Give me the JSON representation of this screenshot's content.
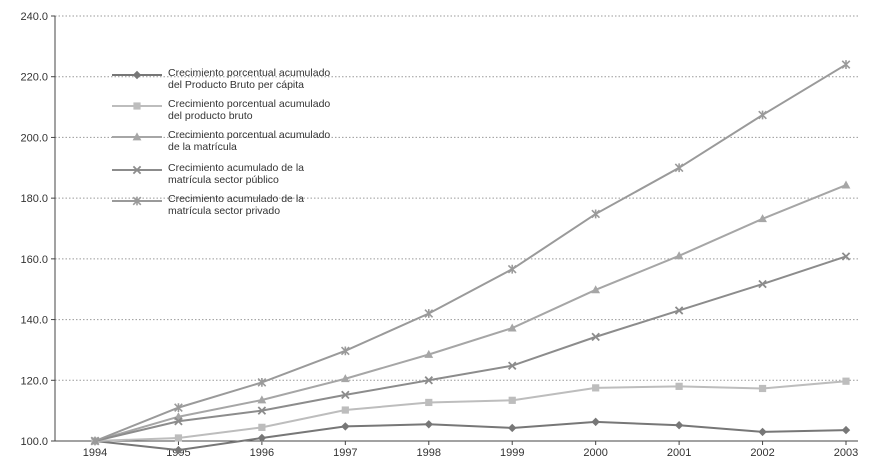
{
  "chart_data": {
    "type": "line",
    "title": "",
    "xlabel": "",
    "ylabel": "",
    "x": [
      "1994",
      "1995",
      "1996",
      "1997",
      "1998",
      "1999",
      "2000",
      "2001",
      "2002",
      "2003"
    ],
    "yticks": [
      "100.0",
      "120.0",
      "140.0",
      "160.0",
      "180.0",
      "200.0",
      "220.0",
      "240.0"
    ],
    "ylim": [
      100,
      240
    ],
    "grid": "horizontal-dotted",
    "legend_position": "top-left",
    "series": [
      {
        "name_lines": [
          "Crecimiento porcentual acumulado",
          "del Producto Bruto per cápita"
        ],
        "marker": "diamond",
        "color": "#777777",
        "values": [
          100.0,
          97.0,
          101.0,
          104.8,
          105.5,
          104.3,
          106.3,
          105.2,
          103.0,
          103.6
        ]
      },
      {
        "name_lines": [
          "Crecimiento porcentual acumulado",
          "del producto bruto"
        ],
        "marker": "square",
        "color": "#bdbdbd",
        "values": [
          100.0,
          101.0,
          104.5,
          110.2,
          112.7,
          113.4,
          117.5,
          118.0,
          117.3,
          119.7
        ]
      },
      {
        "name_lines": [
          "Crecimiento porcentual acumulado",
          "de la matrícula"
        ],
        "marker": "triangle",
        "color": "#a6a6a6",
        "values": [
          100.0,
          108.0,
          113.5,
          120.5,
          128.5,
          137.2,
          149.8,
          161.0,
          173.2,
          184.3
        ]
      },
      {
        "name_lines": [
          "Crecimiento acumulado de la",
          "matrícula sector público"
        ],
        "marker": "x",
        "color": "#8c8c8c",
        "values": [
          100.0,
          106.5,
          110.0,
          115.2,
          120.0,
          124.8,
          134.3,
          143.0,
          151.7,
          160.8
        ]
      },
      {
        "name_lines": [
          "Crecimiento acumulado de la",
          "matrícula sector privado"
        ],
        "marker": "star",
        "color": "#9a9a9a",
        "values": [
          100.0,
          111.0,
          119.3,
          129.7,
          142.0,
          156.6,
          174.8,
          190.0,
          207.4,
          224.0
        ]
      }
    ]
  }
}
